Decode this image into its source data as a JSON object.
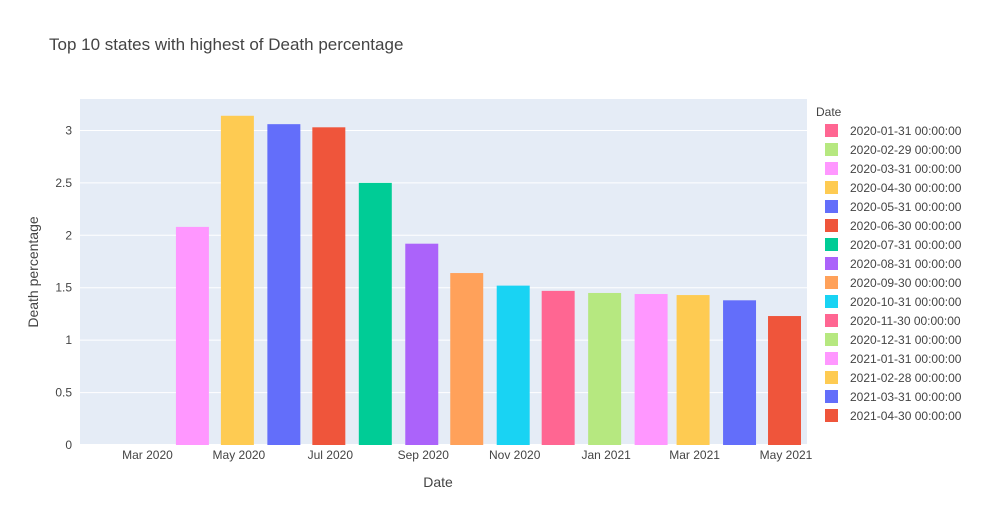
{
  "chart_data": {
    "type": "bar",
    "title": "Top 10 states with highest of Death percentage",
    "xlabel": "Date",
    "ylabel": "Death percentage",
    "ylim": [
      0,
      3.3
    ],
    "yticks": [
      0,
      0.5,
      1,
      1.5,
      2,
      2.5,
      3
    ],
    "ytick_labels": [
      "0",
      "0.5",
      "1",
      "1.5",
      "2",
      "2.5",
      "3"
    ],
    "xticks": [
      "2020-03-01",
      "2020-05-01",
      "2020-07-01",
      "2020-09-01",
      "2020-11-01",
      "2021-01-01",
      "2021-03-01",
      "2021-05-01"
    ],
    "xtick_labels": [
      "Mar 2020",
      "May 2020",
      "Jul 2020",
      "Sep 2020",
      "Nov 2020",
      "Jan 2021",
      "Mar 2021",
      "May 2021"
    ],
    "grid": true,
    "legend_title": "Date",
    "legend_position": "right",
    "series": [
      {
        "name": "2020-01-31 00:00:00",
        "x": "2020-01-31",
        "value": 0,
        "color": "#FF6692"
      },
      {
        "name": "2020-02-29 00:00:00",
        "x": "2020-02-29",
        "value": 0,
        "color": "#B6E880"
      },
      {
        "name": "2020-03-31 00:00:00",
        "x": "2020-03-31",
        "value": 2.08,
        "color": "#FF97FF"
      },
      {
        "name": "2020-04-30 00:00:00",
        "x": "2020-04-30",
        "value": 3.14,
        "color": "#FECB52"
      },
      {
        "name": "2020-05-31 00:00:00",
        "x": "2020-05-31",
        "value": 3.06,
        "color": "#636EFA"
      },
      {
        "name": "2020-06-30 00:00:00",
        "x": "2020-06-30",
        "value": 3.03,
        "color": "#EF553B"
      },
      {
        "name": "2020-07-31 00:00:00",
        "x": "2020-07-31",
        "value": 2.5,
        "color": "#00CC96"
      },
      {
        "name": "2020-08-31 00:00:00",
        "x": "2020-08-31",
        "value": 1.92,
        "color": "#AB63FA"
      },
      {
        "name": "2020-09-30 00:00:00",
        "x": "2020-09-30",
        "value": 1.64,
        "color": "#FFA15A"
      },
      {
        "name": "2020-10-31 00:00:00",
        "x": "2020-10-31",
        "value": 1.52,
        "color": "#19D3F3"
      },
      {
        "name": "2020-11-30 00:00:00",
        "x": "2020-11-30",
        "value": 1.47,
        "color": "#FF6692"
      },
      {
        "name": "2020-12-31 00:00:00",
        "x": "2020-12-31",
        "value": 1.45,
        "color": "#B6E880"
      },
      {
        "name": "2021-01-31 00:00:00",
        "x": "2021-01-31",
        "value": 1.44,
        "color": "#FF97FF"
      },
      {
        "name": "2021-02-28 00:00:00",
        "x": "2021-02-28",
        "value": 1.43,
        "color": "#FECB52"
      },
      {
        "name": "2021-03-31 00:00:00",
        "x": "2021-03-31",
        "value": 1.38,
        "color": "#636EFA"
      },
      {
        "name": "2021-04-30 00:00:00",
        "x": "2021-04-30",
        "value": 1.23,
        "color": "#EF553B"
      }
    ]
  }
}
